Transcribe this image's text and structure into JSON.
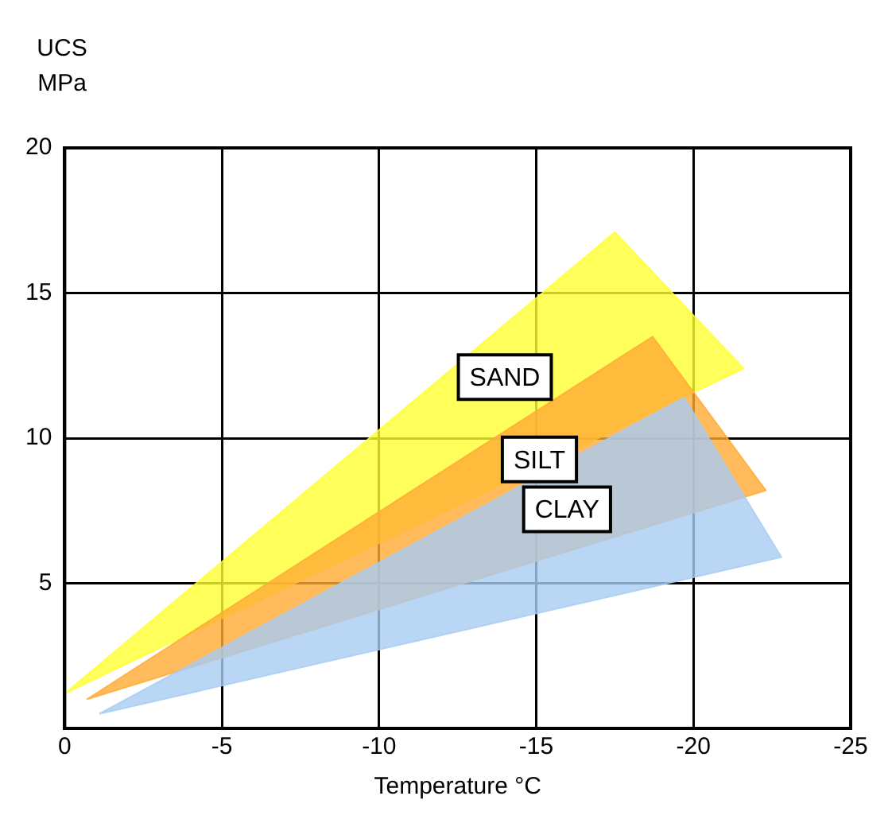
{
  "chart_data": {
    "type": "area",
    "xlabel": "Temperature °C",
    "ylabel": "UCS MPa",
    "xlim": [
      0,
      -25
    ],
    "xticks": [
      0,
      -5,
      -10,
      -15,
      -20,
      -25
    ],
    "ylim": [
      0,
      20
    ],
    "yticks": [
      {
        "value": 0,
        "label": null
      },
      5,
      10,
      15,
      20
    ],
    "grid": true,
    "legend": false,
    "series": [
      {
        "name": "SAND",
        "color": "#ffff33",
        "x": [
          0,
          -17.5,
          -21.6,
          0
        ],
        "values": [
          1.2,
          17.1,
          12.4,
          1.2
        ]
      },
      {
        "name": "SILT",
        "color": "#ffaa33",
        "x": [
          -0.7,
          -18.7,
          -22.3,
          -0.7
        ],
        "values": [
          1.0,
          13.5,
          8.2,
          1.0
        ]
      },
      {
        "name": "CLAY",
        "color": "#a8ccf2",
        "x": [
          -1.1,
          -19.7,
          -22.8,
          -1.1
        ],
        "values": [
          0.5,
          11.4,
          5.9,
          0.5
        ]
      }
    ]
  }
}
